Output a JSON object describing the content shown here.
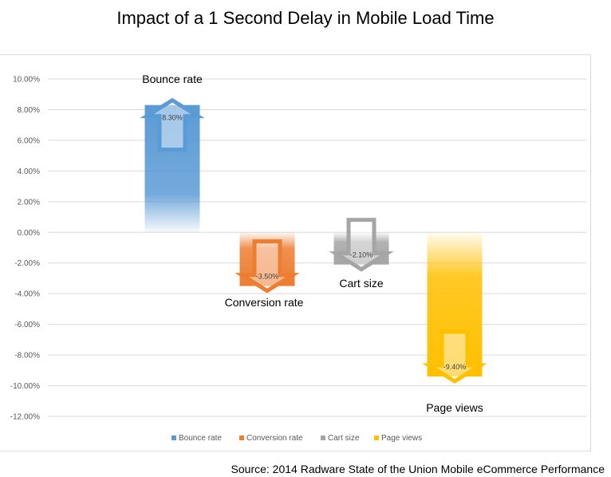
{
  "chart_data": {
    "type": "bar",
    "title": "Impact of a 1 Second Delay in Mobile Load Time",
    "ylim": [
      -12,
      10
    ],
    "yticks": [
      "10.00%",
      "8.00%",
      "6.00%",
      "4.00%",
      "2.00%",
      "0.00%",
      "-2.00%",
      "-4.00%",
      "-6.00%",
      "-8.00%",
      "-10.00%",
      "-12.00%"
    ],
    "grid": true,
    "legend": "bottom",
    "series": [
      {
        "name": "Bounce rate",
        "value": 8.3,
        "label": "8.30%",
        "color": "#5b9bd5"
      },
      {
        "name": "Conversion rate",
        "value": -3.5,
        "label": "-3.50%",
        "color": "#ed7d31"
      },
      {
        "name": "Cart size",
        "value": -2.1,
        "label": "-2.10%",
        "color": "#a5a5a5"
      },
      {
        "name": "Page views",
        "value": -9.4,
        "label": "-9.40%",
        "color": "#ffc000"
      }
    ],
    "category_labels": [
      "Bounce rate",
      "Conversion rate",
      "Cart size",
      "Page views"
    ]
  },
  "source": "Source: 2014 Radware State of the Union  Mobile eCommerce Performance"
}
